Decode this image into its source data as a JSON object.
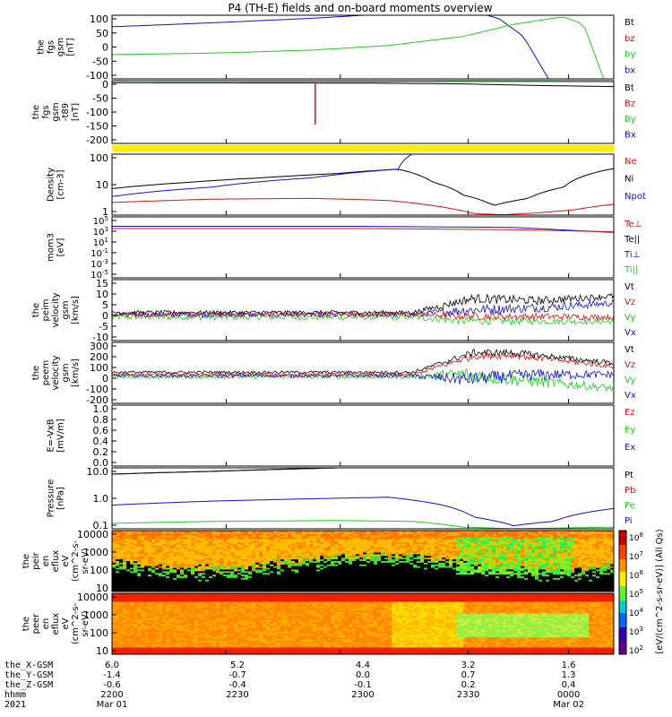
{
  "title": "P4 (TH-E) fields and on-board moments overview",
  "colors": {
    "red": "#dd1111",
    "green": "#22cc22",
    "blue": "#1111cc",
    "black": "#000000",
    "yellow": "#ffee00"
  },
  "bottom_axis": {
    "rows": [
      {
        "label": "the_X-GSM",
        "values": [
          "6.0",
          "5.2",
          "4.4",
          "3.2",
          "1.6"
        ]
      },
      {
        "label": "the_Y-GSM",
        "values": [
          "-1.4",
          "-0.7",
          "0.0",
          "0.7",
          "1.3"
        ]
      },
      {
        "label": "the_Z-GSM",
        "values": [
          "-0.6",
          "-0.4",
          "-0.1",
          "0.2",
          "0.4"
        ]
      },
      {
        "label": "hhmm",
        "values": [
          "2200",
          "2230",
          "2300",
          "2330",
          "0000"
        ]
      },
      {
        "label": "2021",
        "values": [
          "Mar 01",
          "",
          "",
          "",
          "Mar 02"
        ]
      }
    ]
  },
  "colorbar": {
    "labels": [
      "10^8",
      "10^7",
      "10^6",
      "10^5",
      "10^4",
      "10^3",
      "10^2"
    ],
    "title": "[eV/(cm^2-s-sr-eV)] (All Qs)"
  },
  "chart_data": [
    {
      "type": "line",
      "ylabel": [
        "the",
        "fgs",
        "gsm",
        "[nT]"
      ],
      "yticks": [
        "100",
        "50",
        "0",
        "-50",
        "-100"
      ],
      "ylim": [
        -100,
        110
      ],
      "legend": [
        {
          "name": "Bt",
          "color": "#000000"
        },
        {
          "name": "bz",
          "color": "#dd1111"
        },
        {
          "name": "by",
          "color": "#22cc22"
        },
        {
          "name": "bx",
          "color": "#1111cc"
        }
      ],
      "series": [
        {
          "name": "bx",
          "color": "#1111cc",
          "x": [
            0,
            0.2,
            0.4,
            0.55,
            0.7,
            0.77,
            0.82,
            0.87
          ],
          "y": [
            72,
            85,
            100,
            115,
            130,
            100,
            40,
            -100
          ]
        },
        {
          "name": "by",
          "color": "#22cc22",
          "x": [
            0,
            0.2,
            0.4,
            0.55,
            0.7,
            0.8,
            0.9,
            0.94,
            0.98
          ],
          "y": [
            -20,
            -15,
            -5,
            10,
            40,
            80,
            105,
            80,
            -100
          ]
        }
      ]
    },
    {
      "type": "line",
      "ylabel": [
        "the",
        "fgs",
        "gsm",
        "-t89",
        "[nT]"
      ],
      "yticks": [
        "0",
        "-50",
        "-100",
        "-150",
        "-200"
      ],
      "ylim": [
        -225,
        8
      ],
      "legend": [
        {
          "name": "Bt",
          "color": "#000000"
        },
        {
          "name": "Bz",
          "color": "#dd1111"
        },
        {
          "name": "By",
          "color": "#22cc22"
        },
        {
          "name": "Bx",
          "color": "#1111cc"
        }
      ],
      "series": [
        {
          "name": "Bt",
          "color": "#000000",
          "x": [
            0,
            0.5,
            0.7,
            0.85,
            1.0
          ],
          "y": [
            0,
            -1,
            -4,
            -10,
            -14
          ]
        },
        {
          "name": "By",
          "color": "#22cc22",
          "x": [
            0,
            0.5,
            0.8,
            1.0
          ],
          "y": [
            2,
            3,
            4,
            3
          ]
        }
      ],
      "spike": {
        "x": 0.405,
        "ymin": -155,
        "ymax": 0,
        "color": "#dd1111"
      }
    },
    {
      "type": "line",
      "ylabel": [
        "Density",
        "[cm-3]"
      ],
      "yticks": [
        "100",
        "10",
        "1"
      ],
      "ylim": [
        0.7,
        140
      ],
      "log": true,
      "legend": [
        {
          "name": "Ne",
          "color": "#dd1111"
        },
        {
          "name": "Ni",
          "color": "#000000"
        },
        {
          "name": "Npot",
          "color": "#1111cc"
        }
      ],
      "series": [
        {
          "name": "Ni",
          "color": "#000000",
          "x": [
            0,
            0.15,
            0.3,
            0.45,
            0.57,
            0.64,
            0.7,
            0.76,
            0.83,
            0.9,
            1.0
          ],
          "y": [
            7,
            12,
            18,
            26,
            38,
            12,
            4,
            1.6,
            3,
            8,
            40
          ]
        },
        {
          "name": "Npot",
          "color": "#1111cc",
          "x": [
            0,
            0.2,
            0.4,
            0.57,
            0.6
          ],
          "y": [
            3.5,
            8,
            18,
            38,
            150
          ]
        },
        {
          "name": "Ne",
          "color": "#dd1111",
          "x": [
            0,
            0.2,
            0.4,
            0.55,
            0.65,
            0.72,
            0.78,
            0.85,
            0.92,
            1.0
          ],
          "y": [
            2.1,
            2.8,
            3,
            2.5,
            1.5,
            0.8,
            0.72,
            0.85,
            1.1,
            1.8
          ]
        }
      ]
    },
    {
      "type": "line",
      "ylabel": [
        "mom3",
        "[eV]"
      ],
      "yticks": [
        "10^5",
        "10^3",
        "10^1",
        "10^-1",
        "10^-3",
        "10^-5"
      ],
      "ylim": [
        -6,
        5
      ],
      "log_exponent": true,
      "legend": [
        {
          "name": "Te⊥",
          "color": "#dd1111"
        },
        {
          "name": "Te||",
          "color": "#000000"
        },
        {
          "name": "Ti⊥",
          "color": "#1111cc"
        },
        {
          "name": "Ti||",
          "color": "#22cc22"
        }
      ],
      "series": [
        {
          "name": "Ti⊥",
          "color": "#1111cc",
          "x": [
            0,
            0.5,
            0.8,
            1.0
          ],
          "y": [
            3.3,
            3.3,
            3.1,
            2.2
          ]
        },
        {
          "name": "Te⊥",
          "color": "#dd1111",
          "x": [
            0,
            0.5,
            0.8,
            1.0
          ],
          "y": [
            2.9,
            2.9,
            2.7,
            2.3
          ]
        }
      ]
    },
    {
      "type": "line",
      "ylabel": [
        "the",
        "peim",
        "velocity",
        "gsm",
        "[km/s]"
      ],
      "yticks": [
        "15",
        "10",
        "5",
        "0",
        "-5",
        "-10"
      ],
      "ylim": [
        -10,
        16
      ],
      "legend": [
        {
          "name": "Vt",
          "color": "#000000"
        },
        {
          "name": "Vz",
          "color": "#dd1111"
        },
        {
          "name": "Vy",
          "color": "#22cc22"
        },
        {
          "name": "Vx",
          "color": "#1111cc"
        }
      ],
      "noisy": [
        {
          "name": "Vy",
          "color": "#22cc22",
          "x": [
            0,
            0.6,
            0.7,
            1.0
          ],
          "y": [
            0,
            0,
            -1.5,
            -2
          ],
          "amp": [
            1.2,
            1.2,
            1.8,
            1.0
          ]
        },
        {
          "name": "Vx",
          "color": "#1111cc",
          "x": [
            0,
            0.6,
            0.7,
            0.85,
            1.0
          ],
          "y": [
            1,
            1,
            3,
            4,
            6
          ],
          "amp": [
            1.0,
            1.0,
            2.2,
            2.0,
            1.4
          ]
        },
        {
          "name": "Vz",
          "color": "#dd1111",
          "x": [
            0,
            0.6,
            0.7,
            1.0
          ],
          "y": [
            1.2,
            1.2,
            0.5,
            0
          ],
          "amp": [
            1.0,
            1.0,
            1.6,
            1.2
          ]
        },
        {
          "name": "Vt",
          "color": "#000000",
          "x": [
            0,
            0.6,
            0.72,
            0.85,
            1.0
          ],
          "y": [
            2,
            2,
            8,
            7,
            9
          ],
          "amp": [
            0.8,
            0.8,
            2.0,
            1.8,
            1.2
          ]
        }
      ]
    },
    {
      "type": "line",
      "ylabel": [
        "the",
        "peem",
        "velocity",
        "gsm",
        "[km/s]"
      ],
      "yticks": [
        "300",
        "200",
        "100",
        "0",
        "-100",
        "-200"
      ],
      "ylim": [
        -210,
        320
      ],
      "legend": [
        {
          "name": "Vt",
          "color": "#000000"
        },
        {
          "name": "Vz",
          "color": "#dd1111"
        },
        {
          "name": "Vy",
          "color": "#22cc22"
        },
        {
          "name": "Vx",
          "color": "#1111cc"
        }
      ],
      "noisy": [
        {
          "name": "Vy",
          "color": "#22cc22",
          "x": [
            0,
            0.6,
            0.7,
            0.85,
            1.0
          ],
          "y": [
            20,
            20,
            40,
            -20,
            -80
          ],
          "amp": [
            15,
            15,
            70,
            50,
            30
          ]
        },
        {
          "name": "Vx",
          "color": "#1111cc",
          "x": [
            0,
            0.6,
            0.7,
            0.85,
            1.0
          ],
          "y": [
            30,
            30,
            0,
            40,
            40
          ],
          "amp": [
            15,
            15,
            60,
            50,
            30
          ]
        },
        {
          "name": "Vz",
          "color": "#dd1111",
          "x": [
            0,
            0.6,
            0.72,
            0.8,
            1.0
          ],
          "y": [
            40,
            40,
            200,
            210,
            110
          ],
          "amp": [
            12,
            12,
            30,
            30,
            20
          ]
        },
        {
          "name": "Vt",
          "color": "#000000",
          "x": [
            0,
            0.6,
            0.72,
            0.8,
            1.0
          ],
          "y": [
            60,
            60,
            230,
            230,
            140
          ],
          "amp": [
            12,
            12,
            30,
            30,
            20
          ]
        }
      ]
    },
    {
      "type": "line",
      "ylabel": [
        "E=-VxB",
        "[mV/m]"
      ],
      "yticks": [
        "1.0",
        "0.8",
        "0.6",
        "0.4",
        "0.2",
        "0.0"
      ],
      "ylim": [
        0,
        1
      ],
      "legend": [
        {
          "name": "Ez",
          "color": "#dd1111"
        },
        {
          "name": "Ey",
          "color": "#22cc22"
        },
        {
          "name": "Ex",
          "color": "#1111cc"
        }
      ],
      "series": []
    },
    {
      "type": "line",
      "ylabel": [
        "Pressure",
        "[nPa]"
      ],
      "yticks": [
        "10.0",
        "1.0",
        "0.1"
      ],
      "ylim": [
        0.06,
        18
      ],
      "log": true,
      "legend": [
        {
          "name": "Pt",
          "color": "#000000"
        },
        {
          "name": "Pb",
          "color": "#dd1111"
        },
        {
          "name": "Pe",
          "color": "#22cc22"
        },
        {
          "name": "Pi",
          "color": "#1111cc"
        }
      ],
      "series": [
        {
          "name": "Pb",
          "color": "#dd1111",
          "x": [
            0,
            0.2,
            0.4,
            0.5
          ],
          "y": [
            10,
            13,
            17,
            19
          ]
        },
        {
          "name": "Pt",
          "color": "#000000",
          "x": [
            0,
            0.2,
            0.4,
            0.5
          ],
          "y": [
            10,
            13,
            17,
            19
          ]
        },
        {
          "name": "Pi",
          "color": "#1111cc",
          "x": [
            0,
            0.2,
            0.4,
            0.55,
            0.65,
            0.72,
            0.8,
            0.88,
            1.0
          ],
          "y": [
            0.55,
            0.8,
            1.0,
            1.15,
            0.6,
            0.18,
            0.08,
            0.12,
            0.4
          ]
        },
        {
          "name": "Pe",
          "color": "#22cc22",
          "x": [
            0,
            0.2,
            0.45,
            0.6,
            0.7,
            0.8,
            1.0
          ],
          "y": [
            0.1,
            0.12,
            0.13,
            0.12,
            0.07,
            0.06,
            0.07
          ]
        }
      ]
    },
    {
      "type": "heatmap",
      "ylabel": [
        "the",
        "peir",
        "en",
        "eflux",
        "eV",
        "(cm^2-s-",
        "sr-eV)"
      ],
      "yticks": [
        "10000",
        "1000",
        "100",
        "10"
      ],
      "ylim": [
        5,
        30000
      ],
      "variant": "ion"
    },
    {
      "type": "heatmap",
      "ylabel": [
        "the",
        "peer",
        "en",
        "eflux",
        "eV",
        "(cm^2-s-",
        "sr-eV)"
      ],
      "yticks": [
        "10000",
        "1000",
        "100",
        "10"
      ],
      "ylim": [
        5,
        30000
      ],
      "variant": "electron"
    }
  ]
}
